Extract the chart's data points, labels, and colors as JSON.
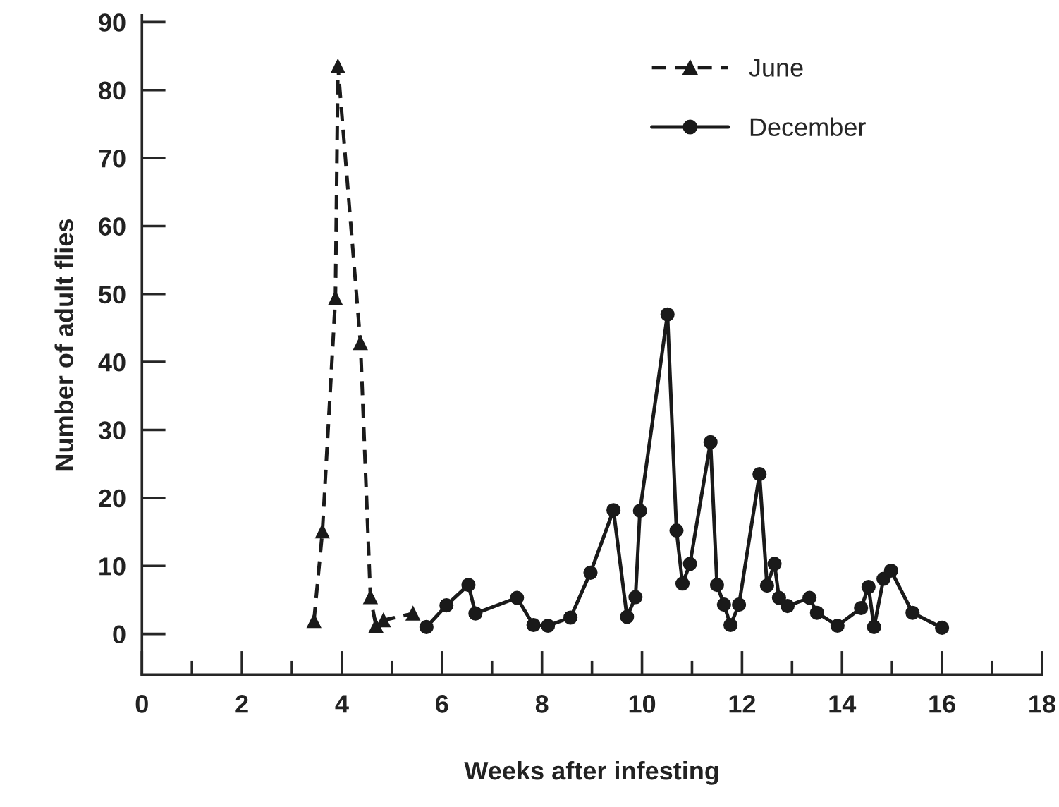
{
  "chart_data": {
    "type": "line",
    "xlabel": "Weeks after infesting",
    "ylabel": "Number of adult flies",
    "series": [
      {
        "name": "June",
        "color": "#1a1a1a",
        "marker": "triangle",
        "line_style": "dashed",
        "x": [
          3.44,
          3.61,
          3.87,
          3.92,
          4.37,
          4.57,
          4.68,
          4.83,
          5.42
        ],
        "values": [
          1.9,
          15.1,
          49.4,
          83.5,
          42.8,
          5.4,
          1.2,
          2.0,
          3.0
        ]
      },
      {
        "name": "December",
        "color": "#1a1a1a",
        "marker": "circle",
        "line_style": "solid",
        "x": [
          5.69,
          6.09,
          6.53,
          6.67,
          7.5,
          7.83,
          8.12,
          8.57,
          8.97,
          9.43,
          9.7,
          9.87,
          9.96,
          10.51,
          10.69,
          10.81,
          10.96,
          11.37,
          11.5,
          11.64,
          11.77,
          11.94,
          12.35,
          12.5,
          12.65,
          12.74,
          12.91,
          13.35,
          13.5,
          13.91,
          14.38,
          14.53,
          14.64,
          14.83,
          14.98,
          15.41,
          16.0
        ],
        "values": [
          1.0,
          4.2,
          7.2,
          3.0,
          5.3,
          1.3,
          1.2,
          2.4,
          9.0,
          18.2,
          2.5,
          5.4,
          18.1,
          47.0,
          15.2,
          7.4,
          10.3,
          28.2,
          7.2,
          4.3,
          1.3,
          4.3,
          23.5,
          7.1,
          10.3,
          5.3,
          4.1,
          5.3,
          3.1,
          1.2,
          3.8,
          6.9,
          1.0,
          8.1,
          9.3,
          3.1,
          0.9
        ]
      }
    ],
    "xlim": [
      0,
      18
    ],
    "ylim": [
      -6,
      91
    ],
    "xticks": [
      0,
      {
        "value": 1,
        "label": null
      },
      2,
      {
        "value": 3,
        "label": null
      },
      4,
      {
        "value": 5,
        "label": null
      },
      6,
      {
        "value": 7,
        "label": null
      },
      8,
      {
        "value": 9,
        "label": null
      },
      10,
      {
        "value": 11,
        "label": null
      },
      12,
      {
        "value": 13,
        "label": null
      },
      14,
      {
        "value": 15,
        "label": null
      },
      16,
      {
        "value": 17,
        "label": null
      },
      18
    ],
    "yticks": [
      0,
      10,
      20,
      30,
      40,
      50,
      60,
      70,
      80,
      90
    ],
    "grid": false,
    "legend": "top right"
  }
}
